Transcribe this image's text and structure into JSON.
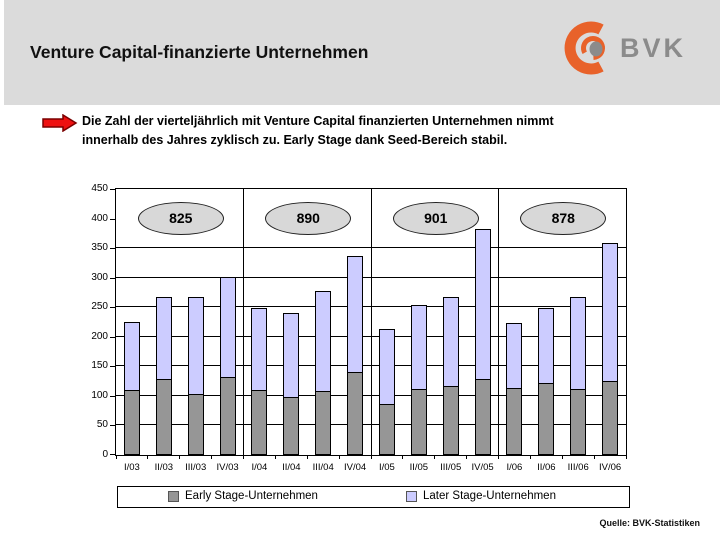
{
  "header": {
    "title": "Venture Capital-finanzierte Unternehmen",
    "logo_text": "BVK"
  },
  "lead": {
    "line1": "Die Zahl der vierteljährlich mit Venture Capital finanzierten Unternehmen nimmt",
    "line2": "innerhalb des Jahres zyklisch zu. Early Stage dank Seed-Bereich stabil."
  },
  "chart_data": {
    "type": "bar",
    "stacked": true,
    "categories": [
      "I/03",
      "II/03",
      "III/03",
      "IV/03",
      "I/04",
      "II/04",
      "III/04",
      "IV/04",
      "I/05",
      "II/05",
      "III/05",
      "IV/05",
      "I/06",
      "II/06",
      "III/06",
      "IV/06"
    ],
    "series": [
      {
        "name": "Early Stage-Unternehmen",
        "color": "#969696",
        "values": [
          110,
          128,
          103,
          132,
          110,
          98,
          108,
          140,
          86,
          112,
          117,
          128,
          113,
          122,
          112,
          125
        ]
      },
      {
        "name": "Later Stage-Unternehmen",
        "color": "#ccccff",
        "values": [
          115,
          139,
          164,
          170,
          138,
          143,
          170,
          197,
          127,
          141,
          151,
          254,
          111,
          127,
          156,
          233
        ]
      }
    ],
    "stack_totals": [
      225,
      267,
      267,
      302,
      248,
      241,
      278,
      337,
      213,
      253,
      268,
      382,
      224,
      249,
      268,
      358
    ],
    "year_ovals": [
      "825",
      "890",
      "901",
      "878"
    ],
    "title": "",
    "xlabel": "",
    "ylabel": "",
    "ylim": [
      0,
      450
    ],
    "yticks": [
      0,
      50,
      100,
      150,
      200,
      250,
      300,
      350,
      400,
      450
    ],
    "gridline_values": [
      50,
      100,
      150,
      200,
      250,
      300,
      350
    ],
    "year_separators_after": [
      4,
      8,
      12
    ],
    "bar_border_color": "#000000",
    "oval_fill": "#d8d8d8",
    "legend_position": "bottom"
  },
  "source": {
    "text": "Quelle: BVK-Statistiken"
  },
  "colors": {
    "header_bg": "#dbdbdb",
    "arrow_red": "#ee1111",
    "arrow_outline": "#7a0000",
    "logo_orange": "#e8622a",
    "logo_gray": "#8b8b8b"
  }
}
